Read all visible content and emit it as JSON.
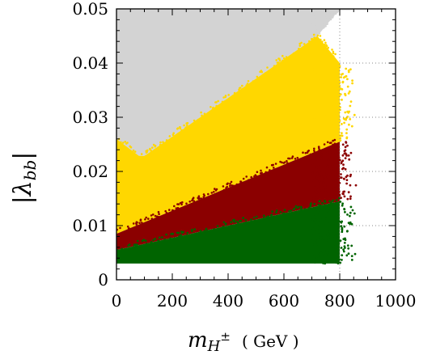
{
  "chart_data": {
    "type": "scatter",
    "title": "",
    "xlabel_main": "m",
    "xlabel_sub": "H",
    "xlabel_sup": "±",
    "xlabel_unit": "( GeV )",
    "ylabel_main": "|λ",
    "ylabel_sub": "bb",
    "ylabel_close": "|",
    "xlim": [
      0,
      1000
    ],
    "ylim": [
      0,
      0.05
    ],
    "xticks": [
      0,
      200,
      400,
      600,
      800,
      1000
    ],
    "yticks": [
      0,
      0.01,
      0.02,
      0.03,
      0.04,
      0.05
    ],
    "xtick_labels": [
      "0",
      "200",
      "400",
      "600",
      "800",
      "1000"
    ],
    "ytick_labels": [
      "0",
      "0.01",
      "0.02",
      "0.03",
      "0.04",
      "0.05"
    ],
    "grid": "dotted lines at y = 0.01–0.04 for x from 800 to 1000, and a dotted vertical line at x = 800",
    "legend": "none",
    "series": [
      {
        "color": "#d3d3d3",
        "region": {
          "x_range": [
            0,
            800
          ],
          "upper": [
            [
              0,
              0.05
            ],
            [
              800,
              0.05
            ]
          ],
          "lower": [
            [
              0,
              0.026
            ],
            [
              90,
              0.0225
            ],
            [
              720,
              0.045
            ],
            [
              800,
              0.05
            ]
          ]
        }
      },
      {
        "color": "#ffd700",
        "region": {
          "x_range": [
            0,
            800
          ],
          "upper": [
            [
              0,
              0.026
            ],
            [
              90,
              0.0225
            ],
            [
              720,
              0.045
            ],
            [
              800,
              0.04
            ]
          ],
          "lower": [
            [
              0,
              0.0085
            ],
            [
              800,
              0.0255
            ]
          ]
        }
      },
      {
        "color": "#8b0000",
        "region": {
          "x_range": [
            0,
            800
          ],
          "upper": [
            [
              0,
              0.0085
            ],
            [
              800,
              0.0255
            ]
          ],
          "lower": [
            [
              0,
              0.0055
            ],
            [
              800,
              0.0145
            ]
          ]
        }
      },
      {
        "color": "#006400",
        "region": {
          "x_range": [
            0,
            800
          ],
          "upper": [
            [
              0,
              0.0055
            ],
            [
              800,
              0.0145
            ]
          ],
          "lower": [
            [
              0,
              0.003
            ],
            [
              800,
              0.003
            ]
          ]
        }
      }
    ]
  }
}
